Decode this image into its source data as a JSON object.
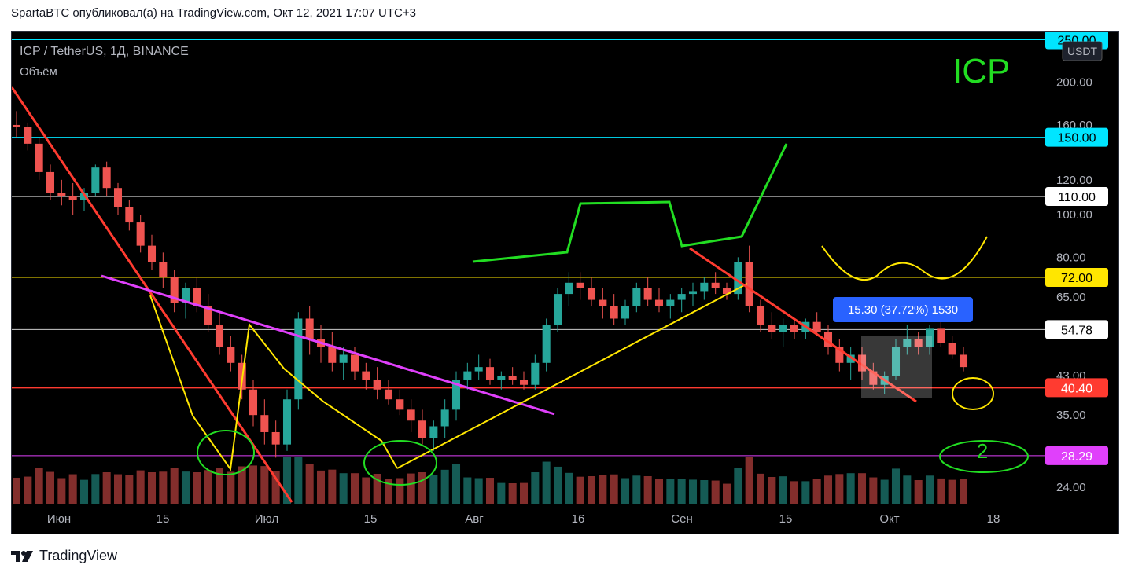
{
  "header": {
    "publish_line": "SpartaBTC опубликовал(а) на TradingView.com, Окт 12, 2021 17:07 UTC+3"
  },
  "footer": {
    "brand": "TradingView",
    "logo_icon": "tradingview-logo-icon"
  },
  "chart_data": {
    "type": "candlestick",
    "symbol_line": "ICP / TetherUS, 1Д, BINANCE",
    "volume_label": "Объём",
    "watermark": "ICP",
    "currency_badge": "USDT",
    "y_scale": "log",
    "ylim": [
      22,
      260
    ],
    "y_ticks": [
      "200.00",
      "160.00",
      "120.00",
      "100.00",
      "80.00",
      "65.00",
      "43.00",
      "35.00",
      "24.00"
    ],
    "x_ticks": [
      "Июн",
      "15",
      "Июл",
      "15",
      "Авг",
      "16",
      "Сен",
      "15",
      "Окт",
      "18"
    ],
    "price_levels": [
      {
        "value": "250.00",
        "color": "#00e5ff",
        "label_color": "#00e5ff"
      },
      {
        "value": "150.00",
        "color": "#00e5ff",
        "label_color": "#00e5ff"
      },
      {
        "value": "110.00",
        "color": "#ffffff",
        "label_color": "#ffffff"
      },
      {
        "value": "72.00",
        "color": "#ffe600",
        "label_color": "#ffe600"
      },
      {
        "value": "54.78",
        "color": "#cccccc",
        "label_color": "#ffffff"
      },
      {
        "value": "40.40",
        "color": "#ff3b30",
        "label_color": "#ff3b30"
      },
      {
        "value": "28.29",
        "color": "#e040fb",
        "label_color": "#e040fb"
      }
    ],
    "measure_tooltip": "15.30 (37.72%) 1530",
    "annotation_text": "2",
    "colors": {
      "up": "#26a69a",
      "down": "#ef5350",
      "background": "#000000"
    },
    "candles_approx": [
      [
        160,
        172,
        150,
        158
      ],
      [
        158,
        162,
        140,
        145
      ],
      [
        145,
        150,
        120,
        125
      ],
      [
        125,
        130,
        108,
        112
      ],
      [
        112,
        120,
        105,
        110
      ],
      [
        110,
        118,
        100,
        108
      ],
      [
        108,
        115,
        102,
        112
      ],
      [
        112,
        130,
        110,
        128
      ],
      [
        128,
        132,
        110,
        115
      ],
      [
        115,
        118,
        100,
        104
      ],
      [
        104,
        108,
        92,
        96
      ],
      [
        96,
        100,
        82,
        85
      ],
      [
        85,
        90,
        75,
        78
      ],
      [
        78,
        82,
        68,
        72
      ],
      [
        72,
        75,
        60,
        63
      ],
      [
        63,
        70,
        58,
        68
      ],
      [
        68,
        72,
        60,
        62
      ],
      [
        62,
        66,
        54,
        56
      ],
      [
        56,
        60,
        48,
        50
      ],
      [
        50,
        53,
        44,
        46
      ],
      [
        46,
        48,
        38,
        40
      ],
      [
        40,
        42,
        33,
        35
      ],
      [
        35,
        38,
        30,
        32
      ],
      [
        32,
        34,
        28,
        30
      ],
      [
        30,
        40,
        29,
        38
      ],
      [
        38,
        60,
        36,
        58
      ],
      [
        58,
        62,
        48,
        52
      ],
      [
        52,
        56,
        46,
        50
      ],
      [
        50,
        54,
        44,
        46
      ],
      [
        46,
        50,
        42,
        48
      ],
      [
        48,
        50,
        42,
        44
      ],
      [
        44,
        46,
        40,
        42
      ],
      [
        42,
        45,
        38,
        40
      ],
      [
        40,
        42,
        37,
        38
      ],
      [
        38,
        40,
        35,
        36
      ],
      [
        36,
        38,
        32,
        34
      ],
      [
        34,
        36,
        30,
        31
      ],
      [
        31,
        34,
        29,
        33
      ],
      [
        33,
        38,
        31,
        36
      ],
      [
        36,
        44,
        34,
        42
      ],
      [
        42,
        46,
        40,
        44
      ],
      [
        44,
        48,
        42,
        45
      ],
      [
        45,
        47,
        41,
        42
      ],
      [
        42,
        44,
        40,
        43
      ],
      [
        43,
        45,
        41,
        42
      ],
      [
        42,
        44,
        40,
        41
      ],
      [
        41,
        48,
        40,
        46
      ],
      [
        46,
        58,
        44,
        56
      ],
      [
        56,
        68,
        54,
        66
      ],
      [
        66,
        74,
        62,
        70
      ],
      [
        70,
        74,
        64,
        68
      ],
      [
        68,
        72,
        62,
        64
      ],
      [
        64,
        68,
        58,
        62
      ],
      [
        62,
        66,
        56,
        58
      ],
      [
        58,
        64,
        56,
        62
      ],
      [
        62,
        70,
        60,
        68
      ],
      [
        68,
        72,
        62,
        64
      ],
      [
        64,
        68,
        60,
        62
      ],
      [
        62,
        66,
        58,
        64
      ],
      [
        64,
        68,
        60,
        66
      ],
      [
        66,
        70,
        62,
        67
      ],
      [
        67,
        72,
        64,
        70
      ],
      [
        70,
        74,
        66,
        68
      ],
      [
        68,
        70,
        64,
        66
      ],
      [
        66,
        80,
        64,
        78
      ],
      [
        78,
        85,
        60,
        62
      ],
      [
        62,
        64,
        54,
        56
      ],
      [
        56,
        60,
        52,
        54
      ],
      [
        54,
        58,
        50,
        56
      ],
      [
        56,
        58,
        52,
        54
      ],
      [
        54,
        58,
        52,
        57
      ],
      [
        57,
        60,
        53,
        54
      ],
      [
        54,
        56,
        48,
        50
      ],
      [
        50,
        52,
        44,
        46
      ],
      [
        46,
        50,
        42,
        48
      ],
      [
        48,
        50,
        42,
        44
      ],
      [
        44,
        46,
        40,
        41
      ],
      [
        41,
        44,
        39,
        43
      ],
      [
        43,
        52,
        42,
        50
      ],
      [
        50,
        56,
        48,
        52
      ],
      [
        52,
        54,
        48,
        50
      ],
      [
        50,
        56,
        48,
        55
      ],
      [
        55,
        57,
        50,
        51
      ],
      [
        51,
        53,
        47,
        48
      ],
      [
        48,
        50,
        44,
        45
      ]
    ]
  }
}
